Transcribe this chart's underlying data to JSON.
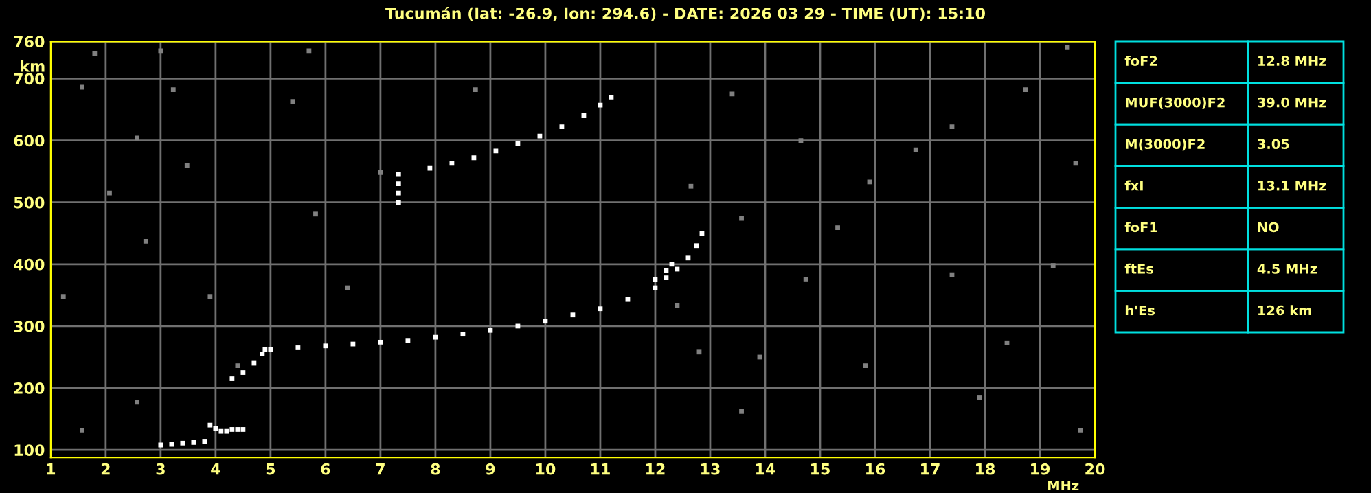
{
  "chart_data": [
    {
      "type": "scatter",
      "title": "Tucumán (lat: -26.9, lon: 294.6) - DATE: 2026 03 29 - TIME (UT): 15:10",
      "xlabel": "MHz",
      "ylabel": "km",
      "xlim": [
        1,
        20
      ],
      "ylim": [
        88,
        760
      ],
      "xticks": [
        1,
        2,
        3,
        4,
        5,
        6,
        7,
        8,
        9,
        10,
        11,
        12,
        13,
        14,
        15,
        16,
        17,
        18,
        19,
        20
      ],
      "yticks": [
        100,
        200,
        300,
        400,
        500,
        600,
        700,
        760
      ],
      "grid": true,
      "marker": "square",
      "legend": false,
      "series": [
        {
          "color": "#808080",
          "x": [
            1.57,
            2.57,
            3.23,
            1.23,
            2.07,
            2.73,
            3.48,
            3.9,
            4.4,
            5.4,
            5.82,
            6.4,
            7.0,
            8.73,
            2.57,
            1.57,
            12.4,
            12.8,
            12.65,
            13.4,
            14.65,
            15.9,
            17.4,
            18.74,
            13.57,
            15.32,
            17.4,
            19.24,
            13.9,
            15.82,
            18.4,
            13.57,
            17.9,
            19.74,
            14.74,
            16.74,
            19.65,
            1.8,
            3.0,
            5.7,
            19.5
          ],
          "values": [
            686,
            604,
            682,
            348,
            515,
            437,
            559,
            348,
            236,
            663,
            481,
            362,
            548,
            682,
            177,
            132,
            333,
            258,
            526,
            675,
            600,
            533,
            622,
            682,
            474,
            459,
            383,
            398,
            250,
            236,
            273,
            162,
            184,
            132,
            376,
            585,
            563,
            740,
            745,
            745,
            750
          ]
        },
        {
          "color": "#ffffff",
          "x": [
            3.0,
            3.2,
            3.4,
            3.6,
            3.8,
            3.9,
            4.0,
            4.1,
            4.2,
            4.3,
            4.4,
            4.5
          ],
          "values": [
            108,
            109,
            111,
            112,
            113,
            140,
            135,
            130,
            130,
            133,
            133,
            133
          ]
        },
        {
          "color": "#ffffff",
          "x": [
            4.3,
            4.5,
            4.7,
            4.85,
            4.9,
            5.0,
            5.5,
            6.0,
            6.5,
            7.0,
            7.5,
            8.0,
            8.5,
            9.0,
            9.5,
            10.0,
            10.5,
            11.0,
            11.5,
            12.0,
            12.2,
            12.4,
            12.6,
            12.75,
            12.85,
            12.0,
            12.2,
            12.3
          ],
          "values": [
            215,
            225,
            240,
            255,
            262,
            262,
            265,
            268,
            271,
            274,
            277,
            282,
            287,
            293,
            300,
            308,
            318,
            328,
            343,
            362,
            378,
            392,
            410,
            430,
            450,
            375,
            390,
            400
          ]
        },
        {
          "color": "#ffffff",
          "x": [
            7.33,
            7.33,
            7.33,
            7.33,
            7.9,
            8.3,
            8.7,
            9.1,
            9.5,
            9.9,
            10.3,
            10.7,
            11.0,
            11.2
          ],
          "values": [
            545,
            530,
            515,
            500,
            555,
            563,
            572,
            583,
            595,
            607,
            622,
            640,
            657,
            670
          ]
        }
      ]
    },
    {
      "type": "other",
      "annotations": [
        "foF2",
        "12.8 MHz",
        "MUF(3000)F2",
        "39.0 MHz",
        "M(3000)F2",
        "3.05",
        "fxI",
        "13.1 MHz",
        "foF1",
        "NO",
        "ftEs",
        "4.5 MHz",
        "h'Es",
        "126 km"
      ]
    }
  ]
}
